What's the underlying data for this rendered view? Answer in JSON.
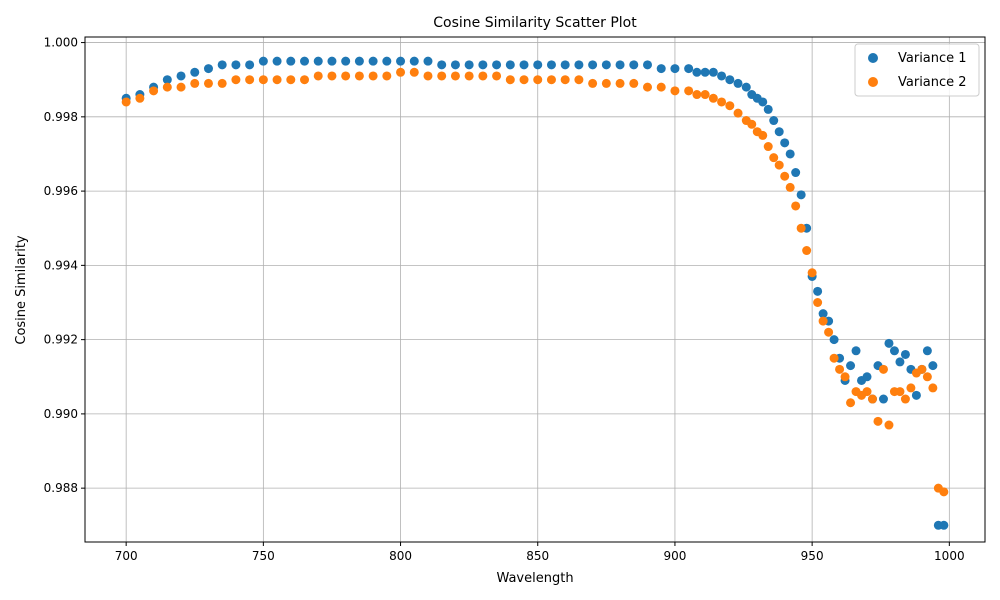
{
  "chart_data": {
    "type": "scatter",
    "title": "Cosine Similarity Scatter Plot",
    "xlabel": "Wavelength",
    "ylabel": "Cosine Similarity",
    "xlim": [
      685,
      1013
    ],
    "ylim": [
      0.98655,
      1.00015
    ],
    "xticks": [
      700,
      750,
      800,
      850,
      900,
      950,
      1000
    ],
    "yticks": [
      0.988,
      0.99,
      0.992,
      0.994,
      0.996,
      0.998,
      1.0
    ],
    "ytick_labels": [
      "0.988",
      "0.990",
      "0.992",
      "0.994",
      "0.996",
      "0.998",
      "1.000"
    ],
    "grid": true,
    "legend_position": "top-right",
    "series": [
      {
        "name": "Variance 1",
        "color": "#1f77b4",
        "x": [
          700,
          705,
          710,
          715,
          720,
          725,
          730,
          735,
          740,
          745,
          750,
          755,
          760,
          765,
          770,
          775,
          780,
          785,
          790,
          795,
          800,
          805,
          810,
          815,
          820,
          825,
          830,
          835,
          840,
          845,
          850,
          855,
          860,
          865,
          870,
          875,
          880,
          885,
          890,
          895,
          900,
          905,
          908,
          911,
          914,
          917,
          920,
          923,
          926,
          928,
          930,
          932,
          934,
          936,
          938,
          940,
          942,
          944,
          946,
          948,
          950,
          952,
          954,
          956,
          958,
          960,
          962,
          964,
          966,
          968,
          970,
          972,
          974,
          976,
          978,
          980,
          982,
          984,
          986,
          988,
          990,
          992,
          994,
          996,
          998
        ],
        "y": [
          0.9985,
          0.9986,
          0.9988,
          0.999,
          0.9991,
          0.9992,
          0.9993,
          0.9994,
          0.9994,
          0.9994,
          0.9995,
          0.9995,
          0.9995,
          0.9995,
          0.9995,
          0.9995,
          0.9995,
          0.9995,
          0.9995,
          0.9995,
          0.9995,
          0.9995,
          0.9995,
          0.9994,
          0.9994,
          0.9994,
          0.9994,
          0.9994,
          0.9994,
          0.9994,
          0.9994,
          0.9994,
          0.9994,
          0.9994,
          0.9994,
          0.9994,
          0.9994,
          0.9994,
          0.9994,
          0.9993,
          0.9993,
          0.9993,
          0.9992,
          0.9992,
          0.9992,
          0.9991,
          0.999,
          0.9989,
          0.9988,
          0.9986,
          0.9985,
          0.9984,
          0.9982,
          0.9979,
          0.9976,
          0.9973,
          0.997,
          0.9965,
          0.9959,
          0.995,
          0.9937,
          0.9933,
          0.9927,
          0.9925,
          0.992,
          0.9915,
          0.9909,
          0.9913,
          0.9917,
          0.9909,
          0.991,
          0.9904,
          0.9913,
          0.9904,
          0.9919,
          0.9917,
          0.9914,
          0.9916,
          0.9912,
          0.9905,
          0.9912,
          0.9917,
          0.9913,
          0.987,
          0.987
        ]
      },
      {
        "name": "Variance 2",
        "color": "#ff7f0e",
        "x": [
          700,
          705,
          710,
          715,
          720,
          725,
          730,
          735,
          740,
          745,
          750,
          755,
          760,
          765,
          770,
          775,
          780,
          785,
          790,
          795,
          800,
          805,
          810,
          815,
          820,
          825,
          830,
          835,
          840,
          845,
          850,
          855,
          860,
          865,
          870,
          875,
          880,
          885,
          890,
          895,
          900,
          905,
          908,
          911,
          914,
          917,
          920,
          923,
          926,
          928,
          930,
          932,
          934,
          936,
          938,
          940,
          942,
          944,
          946,
          948,
          950,
          952,
          954,
          956,
          958,
          960,
          962,
          964,
          966,
          968,
          970,
          972,
          974,
          976,
          978,
          980,
          982,
          984,
          986,
          988,
          990,
          992,
          994,
          996,
          998
        ],
        "y": [
          0.9984,
          0.9985,
          0.9987,
          0.9988,
          0.9988,
          0.9989,
          0.9989,
          0.9989,
          0.999,
          0.999,
          0.999,
          0.999,
          0.999,
          0.999,
          0.9991,
          0.9991,
          0.9991,
          0.9991,
          0.9991,
          0.9991,
          0.9992,
          0.9992,
          0.9991,
          0.9991,
          0.9991,
          0.9991,
          0.9991,
          0.9991,
          0.999,
          0.999,
          0.999,
          0.999,
          0.999,
          0.999,
          0.9989,
          0.9989,
          0.9989,
          0.9989,
          0.9988,
          0.9988,
          0.9987,
          0.9987,
          0.9986,
          0.9986,
          0.9985,
          0.9984,
          0.9983,
          0.9981,
          0.9979,
          0.9978,
          0.9976,
          0.9975,
          0.9972,
          0.9969,
          0.9967,
          0.9964,
          0.9961,
          0.9956,
          0.995,
          0.9944,
          0.9938,
          0.993,
          0.9925,
          0.9922,
          0.9915,
          0.9912,
          0.991,
          0.9903,
          0.9906,
          0.9905,
          0.9906,
          0.9904,
          0.9898,
          0.9912,
          0.9897,
          0.9906,
          0.9906,
          0.9904,
          0.9907,
          0.9911,
          0.9912,
          0.991,
          0.9907,
          0.988,
          0.9879
        ]
      }
    ]
  }
}
